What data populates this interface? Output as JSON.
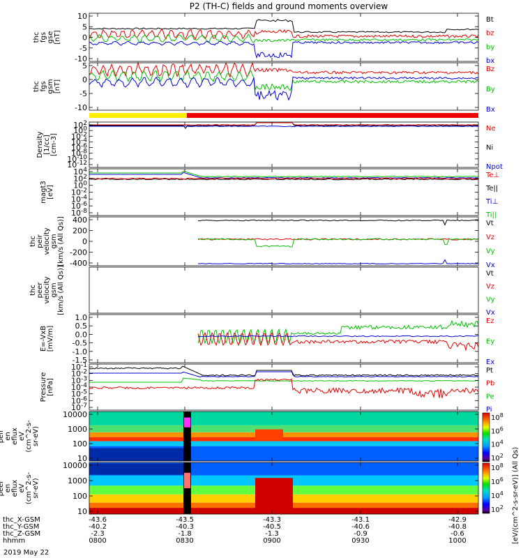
{
  "chart_data": {
    "type": "line",
    "title": "P2 (TH-C) fields and ground moments overview",
    "date_label": "2019 May 22",
    "time_ticks": [
      "0800",
      "0830",
      "0900",
      "0930",
      "1000"
    ],
    "footer_rows": [
      {
        "label": "thc_X-GSM",
        "values": [
          "-43.6",
          "-43.5",
          "-43.3",
          "-43.1",
          "-42.9"
        ]
      },
      {
        "label": "thc_Y-GSM",
        "values": [
          "-40.2",
          "-40.3",
          "-40.5",
          "-40.6",
          "-40.8"
        ]
      },
      {
        "label": "thc_Z-GSM",
        "values": [
          "-2.3",
          "-1.8",
          "-1.3",
          "-0.9",
          "-0.6"
        ]
      },
      {
        "label": "hhmm",
        "values": [
          "0800",
          "0830",
          "0900",
          "0930",
          "1000"
        ]
      }
    ],
    "colorbar_label": "[eV/(cm^2-s-sr-eV)] (All Qs)",
    "colorbar_ticks": [
      "10^8",
      "10^6",
      "10^4",
      "10^2"
    ],
    "panels": [
      {
        "ylabel": [
          "thc",
          "fgs",
          "gse",
          "[nT]"
        ],
        "yticks": [
          "10",
          "5",
          "0",
          "-5",
          "-10"
        ],
        "legend": [
          {
            "t": "Bt",
            "c": "#000000"
          },
          {
            "t": "bz",
            "c": "#e00000"
          },
          {
            "t": "by",
            "c": "#00c000"
          },
          {
            "t": "bx",
            "c": "#0000d0"
          }
        ]
      },
      {
        "ylabel": [
          "thc",
          "fgs",
          "gsm",
          "[nT]"
        ],
        "yticks": [
          "5",
          "0",
          "-5",
          "-10"
        ],
        "legend": [
          {
            "t": "Bz",
            "c": "#e00000"
          },
          {
            "t": "By",
            "c": "#00c000"
          },
          {
            "t": "Bx",
            "c": "#0000d0"
          }
        ]
      },
      {
        "ylabel": [
          "Density",
          "[1/cc]",
          "[cm-3]"
        ],
        "yticks": [
          "10^2",
          "10^0",
          "10^-2",
          "10^-4",
          "10^-6",
          "10^-8",
          "10^-10",
          "10^-12"
        ],
        "legend": [
          {
            "t": "Ne",
            "c": "#e00000"
          },
          {
            "t": "Ni",
            "c": "#000000"
          },
          {
            "t": "Npot",
            "c": "#0000d0"
          }
        ]
      },
      {
        "ylabel": [
          "magt3",
          "[eV]"
        ],
        "yticks": [
          "10^4",
          "10^2",
          "10^0",
          "10^-2",
          "10^-4",
          "10^-6",
          "10^-8"
        ],
        "legend": [
          {
            "t": "Te⊥",
            "c": "#e00000"
          },
          {
            "t": "Te||",
            "c": "#000000"
          },
          {
            "t": "Ti⊥",
            "c": "#0000d0"
          },
          {
            "t": "Ti||",
            "c": "#00c000"
          }
        ]
      },
      {
        "ylabel": [
          "thc",
          "peir",
          "velocity",
          "gsm",
          "[km/s (All Qs)]"
        ],
        "yticks": [
          "400",
          "200",
          "0",
          "-200",
          "-400"
        ],
        "legend": [
          {
            "t": "Vt",
            "c": "#000000"
          },
          {
            "t": "Vz",
            "c": "#e00000"
          },
          {
            "t": "Vy",
            "c": "#00c000"
          },
          {
            "t": "Vx",
            "c": "#0000d0"
          }
        ]
      },
      {
        "ylabel": [
          "thc",
          "peer",
          "velocity",
          "gsm",
          "[km/s (All Qs)]"
        ],
        "yticks": [],
        "legend": [
          {
            "t": "Vt",
            "c": "#000000"
          },
          {
            "t": "Vz",
            "c": "#e00000"
          },
          {
            "t": "Vy",
            "c": "#00c000"
          },
          {
            "t": "Vx",
            "c": "#0000d0"
          }
        ]
      },
      {
        "ylabel": [
          "E=-VxB",
          "[mV/m]"
        ],
        "yticks": [
          "1.0",
          "0.5",
          "0.0",
          "-0.5",
          "-1.0",
          "-1.5"
        ],
        "legend": [
          {
            "t": "Ez",
            "c": "#e00000"
          },
          {
            "t": "Ey",
            "c": "#00c000"
          },
          {
            "t": "Ex",
            "c": "#0000d0"
          }
        ]
      },
      {
        "ylabel": [
          "Pressure",
          "[nPa]"
        ],
        "yticks": [
          "10^-1",
          "10^-2",
          "10^-3",
          "10^-4",
          "10^-5",
          "10^-6",
          "10^-7"
        ],
        "legend": [
          {
            "t": "Pt",
            "c": "#000000"
          },
          {
            "t": "Pb",
            "c": "#e00000"
          },
          {
            "t": "Pe",
            "c": "#00c000"
          },
          {
            "t": "Pi",
            "c": "#0000d0"
          }
        ]
      },
      {
        "ylabel": [
          "thc",
          "peir",
          "en",
          "eflux",
          "eV",
          "(cm^2-s-",
          "sr-eV)"
        ],
        "yticks": [
          "10000",
          "1000",
          "100",
          "10"
        ],
        "legend": []
      },
      {
        "ylabel": [
          "thc",
          "peer",
          "en",
          "eflux",
          "eV",
          "(cm^2-s-",
          "sr-eV)"
        ],
        "yticks": [
          "10000",
          "1000",
          "100",
          "10"
        ],
        "legend": []
      }
    ]
  }
}
